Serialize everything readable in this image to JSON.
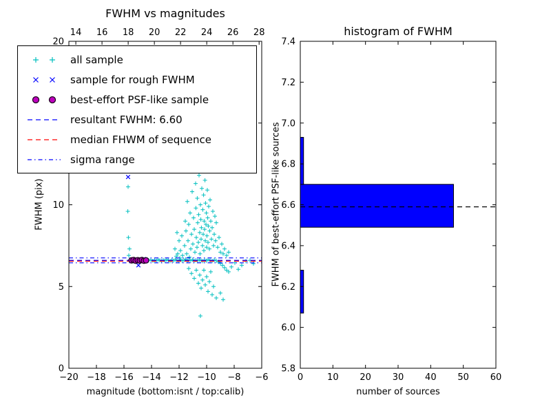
{
  "figure": {
    "background": "#ffffff"
  },
  "legend": {
    "items": [
      {
        "label": "all sample",
        "marker": "plus",
        "color": "#00bfbf"
      },
      {
        "label": "sample for rough FWHM",
        "marker": "x",
        "color": "#0000ff"
      },
      {
        "label": "best-effort PSF-like sample",
        "marker": "circle",
        "color": "#bf00bf"
      },
      {
        "label": "resultant FWHM: 6.60",
        "marker": "dashed-line",
        "color": "#0000ff"
      },
      {
        "label": "median FHWM of sequence",
        "marker": "dashed-line",
        "color": "#ff0000"
      },
      {
        "label": "sigma range",
        "marker": "dashdot-line",
        "color": "#0000ff"
      }
    ]
  },
  "chart_data": [
    {
      "type": "scatter",
      "title": "FWHM vs magnitudes",
      "xlabel": "magnitude (bottom:isnt / top:calib)",
      "ylabel": "FWHM (pix)",
      "x_bottom": {
        "range": [
          -20,
          -6
        ],
        "ticks": [
          -20,
          -18,
          -16,
          -14,
          -12,
          -10,
          -8,
          -6
        ],
        "tick_labels": [
          "−20",
          "−18",
          "−16",
          "−14",
          "−12",
          "−10",
          "−8",
          "−6"
        ]
      },
      "x_top": {
        "range": [
          13.47,
          28.2
        ],
        "ticks": [
          14,
          16,
          18,
          20,
          22,
          24,
          26,
          28
        ],
        "tick_labels": [
          "14",
          "16",
          "18",
          "20",
          "22",
          "24",
          "26",
          "28"
        ]
      },
      "y": {
        "range": [
          0,
          20
        ],
        "ticks": [
          0,
          5,
          10,
          15,
          20
        ],
        "tick_labels": [
          "0",
          "5",
          "10",
          "15",
          "20"
        ]
      },
      "lines": [
        {
          "name": "resultant-fwhm-line",
          "y": 6.6,
          "color": "#0000ff",
          "style": "dashed"
        },
        {
          "name": "median-fwhm-line",
          "y": 6.55,
          "color": "#ff0000",
          "style": "dashed"
        },
        {
          "name": "sigma-upper-line",
          "y": 6.75,
          "color": "#0000ff",
          "style": "dashdot"
        },
        {
          "name": "sigma-lower-line",
          "y": 6.45,
          "color": "#0000ff",
          "style": "dashdot"
        }
      ],
      "series": {
        "all_sample": {
          "marker": "plus",
          "color": "#00bfbf",
          "points": [
            [
              -15.55,
              6.62
            ],
            [
              -15.3,
              6.58
            ],
            [
              -15.1,
              6.6
            ],
            [
              -14.95,
              6.64
            ],
            [
              -14.8,
              6.56
            ],
            [
              -14.65,
              6.6
            ],
            [
              -14.5,
              6.66
            ],
            [
              -14.35,
              6.55
            ],
            [
              -14.2,
              6.6
            ],
            [
              -14.05,
              6.63
            ],
            [
              -13.9,
              6.57
            ],
            [
              -13.78,
              6.62
            ],
            [
              -13.65,
              6.58
            ],
            [
              -13.52,
              6.65
            ],
            [
              -13.4,
              6.6
            ],
            [
              -13.28,
              6.55
            ],
            [
              -13.15,
              6.62
            ],
            [
              -13.02,
              6.58
            ],
            [
              -12.9,
              6.64
            ],
            [
              -12.78,
              6.6
            ],
            [
              -12.65,
              6.56
            ],
            [
              -12.52,
              6.62
            ],
            [
              -12.4,
              6.58
            ],
            [
              -12.28,
              6.65
            ],
            [
              -12.15,
              6.6
            ],
            [
              -12.02,
              6.55
            ],
            [
              -11.9,
              6.63
            ],
            [
              -11.78,
              6.58
            ],
            [
              -11.65,
              6.61
            ],
            [
              -11.52,
              6.66
            ],
            [
              -11.4,
              6.57
            ],
            [
              -11.28,
              6.62
            ],
            [
              -11.15,
              6.59
            ],
            [
              -11.02,
              6.64
            ],
            [
              -10.9,
              6.56
            ],
            [
              -10.78,
              6.61
            ],
            [
              -10.65,
              6.58
            ],
            [
              -10.52,
              6.63
            ],
            [
              -10.4,
              6.59
            ],
            [
              -10.28,
              6.55
            ],
            [
              -10.15,
              6.62
            ],
            [
              -10.02,
              6.58
            ],
            [
              -9.9,
              6.64
            ],
            [
              -9.75,
              6.6
            ],
            [
              -9.6,
              6.56
            ],
            [
              -9.45,
              6.62
            ],
            [
              -9.3,
              6.58
            ],
            [
              -9.15,
              6.5
            ],
            [
              -9.0,
              6.42
            ],
            [
              -8.85,
              6.3
            ],
            [
              -8.7,
              6.15
            ],
            [
              -8.55,
              6.0
            ],
            [
              -8.4,
              5.9
            ],
            [
              -8.2,
              6.2
            ],
            [
              -7.95,
              6.45
            ],
            [
              -7.7,
              6.05
            ],
            [
              -7.45,
              6.3
            ],
            [
              -7.15,
              6.55
            ],
            [
              -6.85,
              6.6
            ],
            [
              -6.6,
              6.4
            ],
            [
              -12.3,
              7.3
            ],
            [
              -12.2,
              6.85
            ],
            [
              -12.15,
              8.3
            ],
            [
              -12.1,
              7.0
            ],
            [
              -12.0,
              7.8
            ],
            [
              -11.95,
              6.75
            ],
            [
              -11.9,
              7.2
            ],
            [
              -11.8,
              8.1
            ],
            [
              -11.75,
              6.9
            ],
            [
              -11.6,
              7.5
            ],
            [
              -11.55,
              9.0
            ],
            [
              -11.5,
              8.4
            ],
            [
              -11.45,
              7.0
            ],
            [
              -11.4,
              10.2
            ],
            [
              -11.35,
              7.8
            ],
            [
              -11.3,
              8.8
            ],
            [
              -11.25,
              6.8
            ],
            [
              -11.2,
              9.5
            ],
            [
              -11.15,
              7.3
            ],
            [
              -11.1,
              8.2
            ],
            [
              -11.05,
              10.8
            ],
            [
              -11.0,
              7.6
            ],
            [
              -10.95,
              9.2
            ],
            [
              -10.9,
              8.5
            ],
            [
              -10.85,
              7.1
            ],
            [
              -10.8,
              11.3
            ],
            [
              -10.78,
              9.8
            ],
            [
              -10.75,
              8.0
            ],
            [
              -10.7,
              7.4
            ],
            [
              -10.68,
              10.4
            ],
            [
              -10.65,
              8.9
            ],
            [
              -10.6,
              7.7
            ],
            [
              -10.58,
              9.4
            ],
            [
              -10.55,
              11.8
            ],
            [
              -10.5,
              8.3
            ],
            [
              -10.48,
              7.0
            ],
            [
              -10.45,
              10.0
            ],
            [
              -10.42,
              9.1
            ],
            [
              -10.4,
              7.9
            ],
            [
              -10.38,
              8.6
            ],
            [
              -10.35,
              11.0
            ],
            [
              -10.3,
              7.5
            ],
            [
              -10.28,
              9.7
            ],
            [
              -10.25,
              8.2
            ],
            [
              -10.22,
              10.6
            ],
            [
              -10.2,
              7.2
            ],
            [
              -10.18,
              9.0
            ],
            [
              -10.15,
              8.5
            ],
            [
              -10.12,
              11.5
            ],
            [
              -10.1,
              7.8
            ],
            [
              -10.08,
              10.1
            ],
            [
              -10.05,
              8.8
            ],
            [
              -10.02,
              9.5
            ],
            [
              -10.0,
              7.4
            ],
            [
              -9.98,
              8.1
            ],
            [
              -9.95,
              10.9
            ],
            [
              -9.92,
              9.2
            ],
            [
              -9.9,
              7.7
            ],
            [
              -9.88,
              8.7
            ],
            [
              -9.85,
              9.9
            ],
            [
              -9.8,
              7.3
            ],
            [
              -9.78,
              8.4
            ],
            [
              -9.75,
              10.3
            ],
            [
              -9.7,
              9.0
            ],
            [
              -9.65,
              7.9
            ],
            [
              -9.6,
              8.6
            ],
            [
              -9.55,
              9.6
            ],
            [
              -9.5,
              7.5
            ],
            [
              -9.45,
              8.2
            ],
            [
              -9.4,
              9.3
            ],
            [
              -9.35,
              7.8
            ],
            [
              -9.3,
              8.9
            ],
            [
              -9.2,
              7.4
            ],
            [
              -9.1,
              8.0
            ],
            [
              -9.0,
              7.1
            ],
            [
              -8.9,
              7.6
            ],
            [
              -8.8,
              7.0
            ],
            [
              -8.7,
              7.3
            ],
            [
              -8.55,
              6.9
            ],
            [
              -8.4,
              7.1
            ],
            [
              -11.3,
              6.1
            ],
            [
              -11.1,
              5.8
            ],
            [
              -10.9,
              5.5
            ],
            [
              -10.75,
              6.0
            ],
            [
              -10.6,
              5.2
            ],
            [
              -10.5,
              5.7
            ],
            [
              -10.4,
              4.9
            ],
            [
              -10.3,
              5.4
            ],
            [
              -10.2,
              6.0
            ],
            [
              -10.1,
              5.1
            ],
            [
              -10.0,
              5.6
            ],
            [
              -9.9,
              4.7
            ],
            [
              -9.8,
              5.3
            ],
            [
              -9.7,
              5.9
            ],
            [
              -9.6,
              4.5
            ],
            [
              -9.5,
              5.0
            ],
            [
              -9.3,
              4.3
            ],
            [
              -9.0,
              4.6
            ],
            [
              -8.8,
              4.2
            ],
            [
              -10.45,
              3.2
            ],
            [
              -15.7,
              11.1
            ],
            [
              -15.72,
              9.6
            ],
            [
              -15.68,
              8.0
            ],
            [
              -15.6,
              7.3
            ],
            [
              -15.65,
              6.9
            ]
          ]
        },
        "rough_fwhm": {
          "marker": "x",
          "color": "#0000ff",
          "points": [
            [
              -15.7,
              11.7
            ],
            [
              -15.15,
              6.6
            ],
            [
              -14.95,
              6.3
            ],
            [
              -14.75,
              6.62
            ],
            [
              -14.55,
              6.68
            ]
          ]
        },
        "psf_like": {
          "marker": "circle",
          "fill": "#bf00bf",
          "edge": "#1a001a",
          "points": [
            [
              -15.45,
              6.6
            ],
            [
              -15.3,
              6.62
            ],
            [
              -15.15,
              6.58
            ],
            [
              -15.0,
              6.61
            ],
            [
              -14.85,
              6.59
            ],
            [
              -14.7,
              6.62
            ],
            [
              -14.55,
              6.58
            ],
            [
              -14.4,
              6.6
            ]
          ]
        }
      }
    },
    {
      "type": "bar",
      "orientation": "horizontal",
      "title": "histogram of FWHM",
      "xlabel": "number of sources",
      "ylabel": "FWHM of best-effort PSF-like sources",
      "x": {
        "range": [
          0,
          60
        ],
        "ticks": [
          0,
          10,
          20,
          30,
          40,
          50,
          60
        ],
        "tick_labels": [
          "0",
          "10",
          "20",
          "30",
          "40",
          "50",
          "60"
        ]
      },
      "y": {
        "range": [
          5.8,
          7.4
        ],
        "ticks": [
          5.8,
          6.0,
          6.2,
          6.4,
          6.6,
          6.8,
          7.0,
          7.2,
          7.4
        ],
        "tick_labels": [
          "5.8",
          "6.0",
          "6.2",
          "6.4",
          "6.6",
          "6.8",
          "7.0",
          "7.2",
          "7.4"
        ]
      },
      "bars": [
        {
          "y_from": 6.07,
          "y_to": 6.28,
          "count": 1
        },
        {
          "y_from": 6.28,
          "y_to": 6.49,
          "count": 0
        },
        {
          "y_from": 6.49,
          "y_to": 6.7,
          "count": 47
        },
        {
          "y_from": 6.7,
          "y_to": 6.93,
          "count": 1
        }
      ],
      "bar_color": "#0000ff",
      "median_line": {
        "y": 6.59,
        "color": "#000000",
        "style": "dashed"
      }
    }
  ]
}
